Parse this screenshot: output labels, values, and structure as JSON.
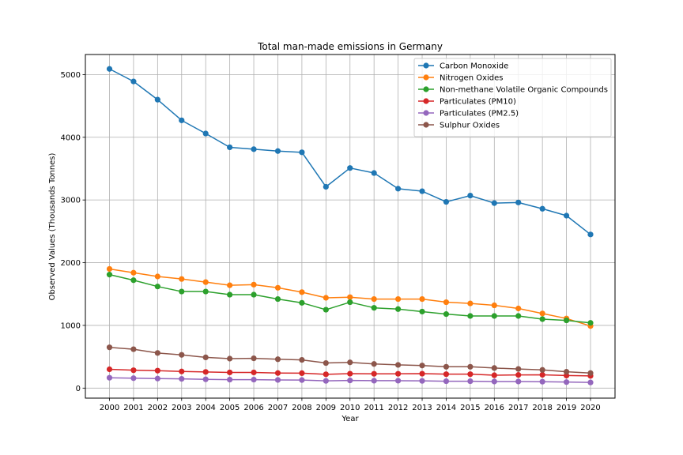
{
  "chart_data": {
    "type": "line",
    "title": "Total man-made emissions in Germany",
    "xlabel": "Year",
    "ylabel": "Observed Values (Thousands Tonnes)",
    "x": [
      "2000",
      "2001",
      "2002",
      "2003",
      "2004",
      "2005",
      "2006",
      "2007",
      "2008",
      "2009",
      "2010",
      "2011",
      "2012",
      "2013",
      "2014",
      "2015",
      "2016",
      "2017",
      "2018",
      "2019",
      "2020"
    ],
    "ylim": [
      -160,
      5320
    ],
    "yticks": [
      "0",
      "1000",
      "2000",
      "3000",
      "4000",
      "5000"
    ],
    "grid": true,
    "legend_position": "top-right",
    "series": [
      {
        "name": "Carbon Monoxide",
        "color": "#1f77b4",
        "values": [
          5090,
          4890,
          4600,
          4270,
          4060,
          3840,
          3810,
          3780,
          3760,
          3210,
          3510,
          3430,
          3180,
          3140,
          2970,
          3070,
          2950,
          2960,
          2860,
          2750,
          2450
        ]
      },
      {
        "name": "Nitrogen Oxides",
        "color": "#ff7f0e",
        "values": [
          1900,
          1840,
          1780,
          1740,
          1690,
          1640,
          1650,
          1600,
          1530,
          1440,
          1450,
          1420,
          1420,
          1420,
          1370,
          1350,
          1320,
          1270,
          1190,
          1110,
          990
        ]
      },
      {
        "name": "Non-methane Volatile Organic Compounds",
        "color": "#2ca02c",
        "values": [
          1810,
          1720,
          1620,
          1540,
          1540,
          1490,
          1490,
          1420,
          1360,
          1250,
          1370,
          1280,
          1260,
          1220,
          1180,
          1150,
          1150,
          1150,
          1100,
          1080,
          1040
        ]
      },
      {
        "name": "Particulates (PM10)",
        "color": "#d62728",
        "values": [
          300,
          285,
          278,
          265,
          258,
          250,
          250,
          240,
          238,
          220,
          230,
          228,
          228,
          230,
          222,
          222,
          205,
          210,
          212,
          200,
          195
        ]
      },
      {
        "name": "Particulates (PM2.5)",
        "color": "#9467bd",
        "values": [
          165,
          158,
          152,
          147,
          140,
          135,
          135,
          130,
          128,
          115,
          122,
          118,
          118,
          115,
          110,
          110,
          105,
          105,
          102,
          96,
          90
        ]
      },
      {
        "name": "Sulphur Oxides",
        "color": "#8c564b",
        "values": [
          650,
          620,
          560,
          530,
          490,
          470,
          475,
          460,
          450,
          400,
          410,
          385,
          370,
          360,
          340,
          340,
          320,
          305,
          290,
          260,
          240
        ]
      }
    ]
  }
}
